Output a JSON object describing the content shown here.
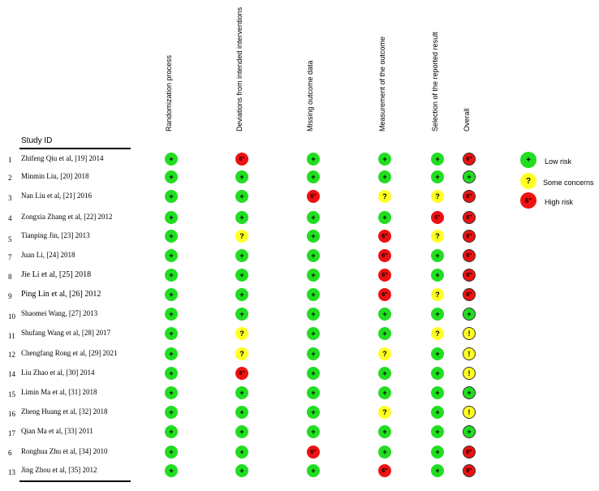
{
  "header": {
    "study_id": "Study ID",
    "columns": [
      "Randomization process",
      "Deviations from intended interventions",
      "Missing outcome data",
      "Measurement of the outcome",
      "Selection of the reported result",
      "Overall"
    ]
  },
  "symbols": {
    "L": "+",
    "S": "?",
    "H": "6\"",
    "O": "!"
  },
  "colors": {
    "low": "#22dd22",
    "some": "#ffff22",
    "high": "#ee1111"
  },
  "rows": [
    {
      "num": "1",
      "study": "Zhifeng Qiu et al, [19] 2014",
      "ratings": [
        "L",
        "H",
        "L",
        "L",
        "L",
        "H"
      ]
    },
    {
      "num": "2",
      "study": "Minmin Liu, [20] 2018",
      "ratings": [
        "L",
        "L",
        "L",
        "L",
        "L",
        "L"
      ]
    },
    {
      "num": "3",
      "study": "Nan Liu et al, [21] 2016",
      "ratings": [
        "L",
        "L",
        "H",
        "S",
        "S",
        "H"
      ]
    },
    {
      "num": "4",
      "study": "Zongxia Zhang et al, [22] 2012",
      "ratings": [
        "L",
        "L",
        "L",
        "L",
        "H",
        "H"
      ]
    },
    {
      "num": "5",
      "study": "Tianping Jin, [23] 2013",
      "ratings": [
        "L",
        "S",
        "L",
        "H",
        "S",
        "H"
      ]
    },
    {
      "num": "7",
      "study": "Juan Li, [24] 2018",
      "ratings": [
        "L",
        "L",
        "L",
        "H",
        "L",
        "H"
      ]
    },
    {
      "num": "8",
      "study": "Jie Li  et al, [25] 2018",
      "ratings": [
        "L",
        "L",
        "L",
        "H",
        "L",
        "H"
      ]
    },
    {
      "num": "9",
      "study": "Ping Lin et al, [26] 2012",
      "ratings": [
        "L",
        "L",
        "L",
        "H",
        "S",
        "H"
      ]
    },
    {
      "num": "10",
      "study": "Shaomei Wang, [27] 2013",
      "ratings": [
        "L",
        "L",
        "L",
        "L",
        "L",
        "L"
      ]
    },
    {
      "num": "11",
      "study": "Shufang Wang et al, [28] 2017",
      "ratings": [
        "L",
        "S",
        "L",
        "L",
        "S",
        "O"
      ]
    },
    {
      "num": "12",
      "study": "Chengfang Rong et al, [29] 2021",
      "ratings": [
        "L",
        "S",
        "L",
        "S",
        "L",
        "O"
      ]
    },
    {
      "num": "14",
      "study": "Liu Zhao et al, [30] 2014",
      "ratings": [
        "L",
        "H",
        "L",
        "L",
        "L",
        "O"
      ]
    },
    {
      "num": "15",
      "study": "Limin Ma et al, [31] 2018",
      "ratings": [
        "L",
        "L",
        "L",
        "L",
        "L",
        "L"
      ]
    },
    {
      "num": "16",
      "study": "Zheng Huang et al, [32] 2018",
      "ratings": [
        "L",
        "L",
        "L",
        "S",
        "L",
        "O"
      ]
    },
    {
      "num": "17",
      "study": "Qian Ma et al, [33] 2011",
      "ratings": [
        "L",
        "L",
        "L",
        "L",
        "L",
        "L"
      ]
    },
    {
      "num": "6",
      "study": "Ronghua Zhu et al, [34] 2010",
      "ratings": [
        "L",
        "L",
        "H",
        "L",
        "L",
        "H"
      ]
    },
    {
      "num": "13",
      "study": "Jing Zhou et al, [35] 2012",
      "ratings": [
        "L",
        "L",
        "L",
        "H",
        "L",
        "H"
      ]
    }
  ],
  "legend": [
    {
      "symbol": "+",
      "level": "low",
      "label": "Low risk"
    },
    {
      "symbol": "?",
      "level": "some",
      "label": "Some concerns"
    },
    {
      "symbol": "6\"",
      "level": "high",
      "label": "High risk"
    }
  ]
}
